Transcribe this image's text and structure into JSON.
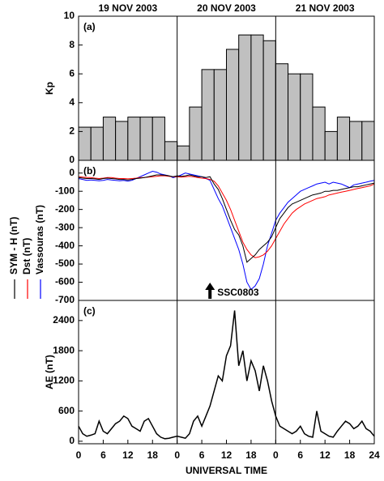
{
  "header": {
    "days": [
      "19 NOV 2003",
      "20 NOV 2003",
      "21 NOV 2003"
    ]
  },
  "chart_data": [
    {
      "type": "histogram",
      "panel": "(a)",
      "ylabel": "Kp",
      "bins": [
        0,
        3,
        6,
        9,
        12,
        15,
        18,
        21,
        24,
        27,
        30,
        33,
        36,
        39,
        42,
        45,
        48,
        51,
        54,
        57,
        60,
        63,
        66,
        69,
        72
      ],
      "values": [
        2.3,
        2.3,
        3,
        2.7,
        3,
        3,
        3,
        1.3,
        1,
        3.7,
        6.3,
        6.3,
        7.7,
        8.7,
        8.7,
        8.3,
        6.7,
        6,
        6,
        3.7,
        2,
        3,
        2.7,
        2.7
      ],
      "color": "#c0c0c0",
      "xlim": [
        0,
        72
      ],
      "ylim": [
        0,
        10
      ],
      "yticks": [
        0,
        2,
        4,
        6,
        8,
        10
      ]
    },
    {
      "type": "line",
      "panel": "(b)",
      "x": [
        0,
        1,
        2,
        3,
        4,
        5,
        6,
        7,
        8,
        9,
        10,
        11,
        12,
        13,
        14,
        15,
        16,
        17,
        18,
        19,
        20,
        21,
        22,
        23,
        24,
        25,
        26,
        27,
        28,
        29,
        30,
        31,
        32,
        33,
        34,
        35,
        36,
        37,
        38,
        39,
        40,
        41,
        42,
        43,
        44,
        45,
        46,
        47,
        48,
        49,
        50,
        51,
        52,
        53,
        54,
        55,
        56,
        57,
        58,
        59,
        60,
        61,
        62,
        63,
        64,
        65,
        66,
        67,
        68,
        69,
        70,
        71,
        72
      ],
      "series": [
        {
          "name": "SYM - H (nT)",
          "color": "#000000",
          "values": [
            -25,
            -28,
            -30,
            -30,
            -32,
            -35,
            -30,
            -28,
            -30,
            -32,
            -35,
            -35,
            -38,
            -35,
            -30,
            -28,
            -25,
            -20,
            -15,
            -10,
            -10,
            -12,
            -15,
            -20,
            -15,
            -18,
            -15,
            -10,
            -15,
            -20,
            -20,
            -25,
            -20,
            -60,
            -90,
            -140,
            -200,
            -260,
            -310,
            -340,
            -400,
            -490,
            -470,
            -450,
            -420,
            -400,
            -380,
            -350,
            -300,
            -250,
            -220,
            -190,
            -170,
            -160,
            -150,
            -140,
            -130,
            -120,
            -115,
            -110,
            -100,
            -100,
            -95,
            -95,
            -90,
            -85,
            -80,
            -75,
            -75,
            -70,
            -65,
            -60,
            -55
          ]
        },
        {
          "name": "Dst (nT)",
          "color": "#ff0000",
          "values": [
            -20,
            -22,
            -25,
            -25,
            -28,
            -30,
            -28,
            -25,
            -25,
            -28,
            -30,
            -30,
            -32,
            -30,
            -28,
            -25,
            -25,
            -22,
            -20,
            -18,
            -15,
            -15,
            -18,
            -20,
            -20,
            -22,
            -20,
            -18,
            -20,
            -25,
            -28,
            -30,
            -35,
            -45,
            -70,
            -110,
            -150,
            -200,
            -260,
            -320,
            -380,
            -420,
            -450,
            -465,
            -460,
            -450,
            -430,
            -400,
            -360,
            -320,
            -280,
            -250,
            -220,
            -200,
            -185,
            -170,
            -160,
            -150,
            -140,
            -135,
            -130,
            -120,
            -115,
            -110,
            -105,
            -100,
            -95,
            -90,
            -85,
            -80,
            -75,
            -70,
            -60
          ]
        },
        {
          "name": "Vassouras (nT)",
          "color": "#0000ff",
          "values": [
            -30,
            -35,
            -40,
            -38,
            -40,
            -42,
            -40,
            -35,
            -38,
            -40,
            -42,
            -40,
            -45,
            -40,
            -30,
            -20,
            -10,
            0,
            10,
            5,
            -5,
            -10,
            -15,
            -25,
            -20,
            -10,
            0,
            -5,
            -10,
            -15,
            -20,
            -30,
            -40,
            -90,
            -140,
            -180,
            -240,
            -300,
            -360,
            -420,
            -500,
            -600,
            -640,
            -620,
            -580,
            -500,
            -400,
            -330,
            -260,
            -220,
            -190,
            -160,
            -140,
            -120,
            -100,
            -90,
            -80,
            -70,
            -60,
            -55,
            -50,
            -60,
            -50,
            -55,
            -60,
            -70,
            -80,
            -65,
            -60,
            -55,
            -50,
            -45,
            -40
          ]
        }
      ],
      "annotations": [
        {
          "text": "SSC0803",
          "x": 32
        }
      ],
      "xlim": [
        0,
        72
      ],
      "ylim": [
        -700,
        70
      ],
      "yticks": [
        0,
        -100,
        -200,
        -300,
        -400,
        -500,
        -600,
        -700
      ]
    },
    {
      "type": "line",
      "panel": "(c)",
      "ylabel": "AE (nT)",
      "xlabel": "UNIVERSAL TIME",
      "x": [
        0,
        1,
        2,
        3,
        4,
        5,
        6,
        7,
        8,
        9,
        10,
        11,
        12,
        13,
        14,
        15,
        16,
        17,
        18,
        19,
        20,
        21,
        22,
        23,
        24,
        25,
        26,
        27,
        28,
        29,
        30,
        31,
        32,
        33,
        34,
        35,
        36,
        37,
        38,
        39,
        40,
        41,
        42,
        43,
        44,
        45,
        46,
        47,
        48,
        49,
        50,
        51,
        52,
        53,
        54,
        55,
        56,
        57,
        58,
        59,
        60,
        61,
        62,
        63,
        64,
        65,
        66,
        67,
        68,
        69,
        70,
        71,
        72
      ],
      "values": [
        300,
        150,
        100,
        120,
        150,
        400,
        200,
        150,
        250,
        350,
        400,
        500,
        450,
        300,
        250,
        200,
        400,
        450,
        300,
        150,
        80,
        50,
        60,
        80,
        100,
        80,
        60,
        150,
        400,
        500,
        300,
        500,
        700,
        1000,
        1300,
        1200,
        1700,
        1900,
        2600,
        1500,
        1800,
        1200,
        1600,
        1400,
        1000,
        1500,
        1200,
        800,
        500,
        300,
        250,
        200,
        150,
        200,
        300,
        150,
        100,
        80,
        600,
        200,
        150,
        100,
        80,
        200,
        300,
        400,
        350,
        250,
        300,
        400,
        250,
        200,
        100
      ],
      "color": "#000000",
      "xlim": [
        0,
        72
      ],
      "ylim": [
        -50,
        2800
      ],
      "yticks": [
        0,
        600,
        1200,
        1800,
        2400
      ],
      "xticks": [
        0,
        6,
        12,
        18,
        {
          "value": 24,
          "label": "0"
        },
        {
          "value": 30,
          "label": "6"
        },
        {
          "value": 36,
          "label": "12"
        },
        {
          "value": 42,
          "label": "18"
        },
        {
          "value": 48,
          "label": "0"
        },
        {
          "value": 54,
          "label": "6"
        },
        {
          "value": 60,
          "label": "12"
        },
        {
          "value": 66,
          "label": "18"
        },
        {
          "value": 72,
          "label": "24"
        }
      ]
    }
  ]
}
